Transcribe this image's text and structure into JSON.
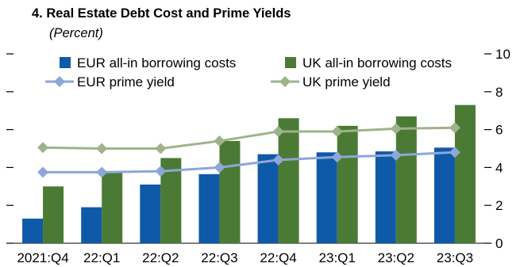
{
  "chart_data": {
    "type": "bar",
    "title": "4. Real Estate Debt Cost and Prime Yields",
    "subtitle": "(Percent)",
    "categories": [
      "2021:Q4",
      "22:Q1",
      "22:Q2",
      "22:Q3",
      "22:Q4",
      "23:Q1",
      "23:Q2",
      "23:Q3"
    ],
    "ylim": [
      0,
      10
    ],
    "yticks": [
      "0",
      "2",
      "4",
      "6",
      "8",
      "10"
    ],
    "grid": false,
    "legend_placement": "top",
    "bar_series": [
      {
        "name": "EUR all-in borrowing costs",
        "color": "#0f5aa8",
        "values": [
          1.3,
          1.9,
          3.1,
          3.65,
          4.7,
          4.8,
          4.85,
          5.05
        ]
      },
      {
        "name": "UK all-in borrowing costs",
        "color": "#4b7a35",
        "values": [
          3.0,
          3.8,
          4.5,
          5.4,
          6.6,
          6.2,
          6.7,
          7.3
        ]
      }
    ],
    "line_series": [
      {
        "name": "EUR prime yield",
        "color": "#8ea6d8",
        "marker": "diamond",
        "values": [
          3.75,
          3.75,
          3.8,
          4.0,
          4.4,
          4.55,
          4.65,
          4.8
        ]
      },
      {
        "name": "UK prime yield",
        "color": "#9eb38a",
        "marker": "diamond",
        "values": [
          5.05,
          5.0,
          5.0,
          5.4,
          5.9,
          5.9,
          6.05,
          6.1
        ]
      }
    ]
  }
}
